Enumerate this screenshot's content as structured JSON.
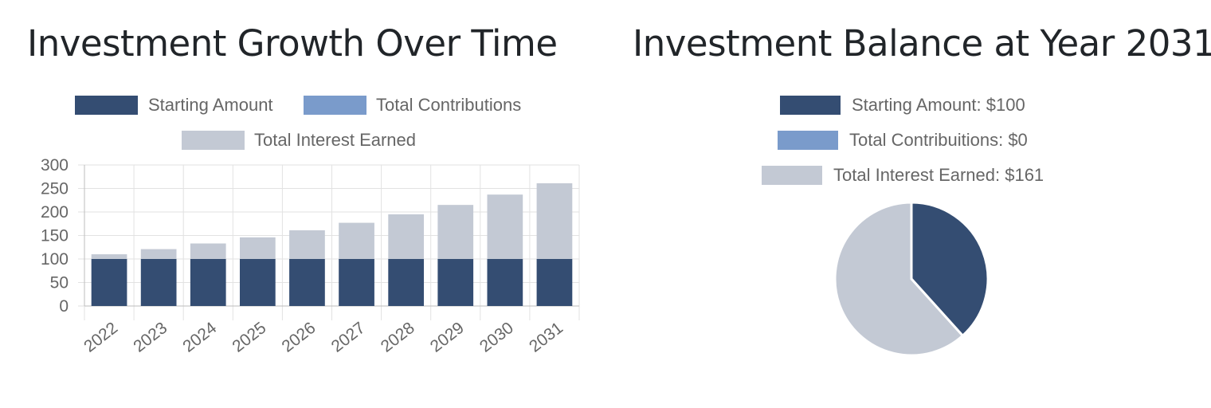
{
  "colors": {
    "starting": "#344d72",
    "contributions": "#7a9bcb",
    "interest": "#c3c9d4",
    "grid": "#e2e2e2",
    "axis_text": "#666666"
  },
  "left": {
    "title": "Investment Growth Over Time",
    "legend": [
      {
        "label": "Starting Amount",
        "color": "#344d72"
      },
      {
        "label": "Total Contributions",
        "color": "#7a9bcb"
      },
      {
        "label": "Total Interest Earned",
        "color": "#c3c9d4"
      }
    ]
  },
  "right": {
    "title": "Investment Balance at Year 2031",
    "legend": [
      {
        "label": "Starting Amount: $100",
        "color": "#344d72"
      },
      {
        "label": "Total Contribuitions: $0",
        "color": "#7a9bcb"
      },
      {
        "label": "Total Interest Earned: $161",
        "color": "#c3c9d4"
      }
    ]
  },
  "chart_data": [
    {
      "type": "bar",
      "stacked": true,
      "title": "Investment Growth Over Time",
      "categories": [
        "2022",
        "2023",
        "2024",
        "2025",
        "2026",
        "2027",
        "2028",
        "2029",
        "2030",
        "2031"
      ],
      "series": [
        {
          "name": "Starting Amount",
          "color": "#344d72",
          "values": [
            100,
            100,
            100,
            100,
            100,
            100,
            100,
            100,
            100,
            100
          ]
        },
        {
          "name": "Total Contributions",
          "color": "#7a9bcb",
          "values": [
            0,
            0,
            0,
            0,
            0,
            0,
            0,
            0,
            0,
            0
          ]
        },
        {
          "name": "Total Interest Earned",
          "color": "#c3c9d4",
          "values": [
            10,
            21,
            33,
            46,
            61,
            77,
            95,
            115,
            137,
            161
          ]
        }
      ],
      "yticks": [
        0,
        50,
        100,
        150,
        200,
        250,
        300
      ],
      "ylim": [
        0,
        300
      ],
      "grid": true,
      "legend": "top"
    },
    {
      "type": "pie",
      "title": "Investment Balance at Year 2031",
      "slices": [
        {
          "name": "Starting Amount",
          "value": 100,
          "color": "#344d72"
        },
        {
          "name": "Total Contributions",
          "value": 0,
          "color": "#7a9bcb"
        },
        {
          "name": "Total Interest Earned",
          "value": 161,
          "color": "#c3c9d4"
        }
      ],
      "legend": "top"
    }
  ]
}
